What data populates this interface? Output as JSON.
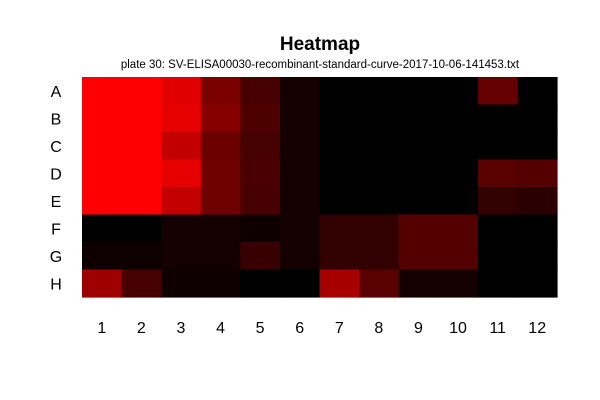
{
  "chart_data": {
    "type": "heatmap",
    "title": "Heatmap",
    "subtitle": "plate 30: SV-ELISA00030-recombinant-standard-curve-2017-10-06-141453.txt",
    "xlabel": "",
    "ylabel": "",
    "rows": [
      "A",
      "B",
      "C",
      "D",
      "E",
      "F",
      "G",
      "H"
    ],
    "columns": [
      "1",
      "2",
      "3",
      "4",
      "5",
      "6",
      "7",
      "8",
      "9",
      "10",
      "11",
      "12"
    ],
    "color_scale": {
      "low": "#000000",
      "high": "#ff0000"
    },
    "legend": "none",
    "grid": false,
    "values": [
      [
        1.0,
        1.0,
        0.88,
        0.48,
        0.28,
        0.08,
        0.0,
        0.0,
        0.0,
        0.0,
        0.4,
        0.0
      ],
      [
        1.0,
        1.0,
        0.9,
        0.53,
        0.3,
        0.08,
        0.0,
        0.0,
        0.0,
        0.0,
        0.0,
        0.0
      ],
      [
        1.0,
        1.0,
        0.76,
        0.42,
        0.27,
        0.08,
        0.0,
        0.0,
        0.0,
        0.0,
        0.0,
        0.0
      ],
      [
        1.0,
        1.0,
        0.9,
        0.43,
        0.29,
        0.08,
        0.0,
        0.0,
        0.0,
        0.0,
        0.35,
        0.33
      ],
      [
        1.0,
        1.0,
        0.76,
        0.43,
        0.28,
        0.08,
        0.0,
        0.0,
        0.0,
        0.0,
        0.2,
        0.17
      ],
      [
        0.0,
        0.0,
        0.08,
        0.08,
        0.06,
        0.08,
        0.2,
        0.2,
        0.33,
        0.33,
        0.0,
        0.0
      ],
      [
        0.06,
        0.06,
        0.08,
        0.08,
        0.22,
        0.08,
        0.2,
        0.2,
        0.33,
        0.33,
        0.0,
        0.0
      ],
      [
        0.62,
        0.28,
        0.06,
        0.06,
        0.0,
        0.0,
        0.65,
        0.35,
        0.08,
        0.08,
        0.0,
        0.0
      ]
    ]
  }
}
